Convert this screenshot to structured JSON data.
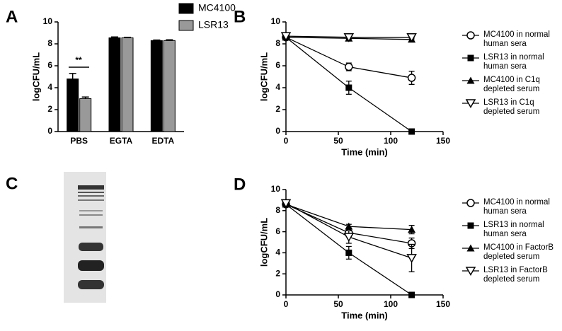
{
  "chart_data": [
    {
      "type": "bar",
      "panel_label": "A",
      "y_label": "logCFU/mL",
      "categories": [
        "PBS",
        "EGTA",
        "EDTA"
      ],
      "series": [
        {
          "name": "MC4100",
          "color": "#000000",
          "values": [
            4.8,
            8.55,
            8.3
          ],
          "errors": [
            0.5,
            0.08,
            0.05
          ]
        },
        {
          "name": "LSR13",
          "color": "#999999",
          "values": [
            3.0,
            8.55,
            8.3
          ],
          "errors": [
            0.15,
            0.05,
            0.07
          ]
        }
      ],
      "ylim": [
        0,
        10
      ],
      "yticks": [
        0,
        2,
        4,
        6,
        8,
        10
      ],
      "annotation": "**",
      "legend": "top"
    },
    {
      "type": "line",
      "panel_label": "B",
      "x_label": "Time (min)",
      "y_label": "logCFU/mL",
      "x": [
        0,
        60,
        120
      ],
      "series": [
        {
          "name": "MC4100 in normal human sera",
          "color": "#000000",
          "marker": "circle-open",
          "values": [
            8.6,
            5.9,
            4.9
          ],
          "errors": [
            0.2,
            0.35,
            0.6
          ]
        },
        {
          "name": "LSR13 in normal human sera",
          "color": "#000000",
          "marker": "square",
          "values": [
            8.6,
            4.0,
            0
          ],
          "errors": [
            0.2,
            0.6,
            0.1
          ]
        },
        {
          "name": "MC4100 in C1q depleted serum",
          "color": "#000000",
          "marker": "triangle",
          "values": [
            8.6,
            8.5,
            8.4
          ],
          "errors": [
            0.2,
            0.15,
            0.15
          ]
        },
        {
          "name": "LSR13 in C1q depleted serum",
          "color": "#000000",
          "marker": "triangle-down-open",
          "values": [
            8.7,
            8.6,
            8.6
          ],
          "errors": [
            0.2,
            0.15,
            0.15
          ]
        }
      ],
      "xlim": [
        0,
        150
      ],
      "xticks": [
        0,
        50,
        100,
        150
      ],
      "ylim": [
        0,
        10
      ],
      "yticks": [
        0,
        2,
        4,
        6,
        8,
        10
      ],
      "legend": "right"
    },
    {
      "type": "line",
      "panel_label": "D",
      "x_label": "Time (min)",
      "y_label": "logCFU/mL",
      "x": [
        0,
        60,
        120
      ],
      "series": [
        {
          "name": "MC4100 in normal human sera",
          "color": "#000000",
          "marker": "circle-open",
          "values": [
            8.6,
            5.9,
            4.9
          ],
          "errors": [
            0.2,
            0.35,
            0.5
          ]
        },
        {
          "name": "LSR13 in normal human sera",
          "color": "#000000",
          "marker": "square",
          "values": [
            8.6,
            4.0,
            0
          ],
          "errors": [
            0.2,
            0.6,
            0.1
          ]
        },
        {
          "name": "MC4100 in FactorB depleted serum",
          "color": "#000000",
          "marker": "triangle",
          "values": [
            8.6,
            6.5,
            6.2
          ],
          "errors": [
            0.2,
            0.2,
            0.4
          ]
        },
        {
          "name": "LSR13 in FactorB depleted serum",
          "color": "#000000",
          "marker": "triangle-down-open",
          "values": [
            8.7,
            5.5,
            3.5
          ],
          "errors": [
            0.2,
            0.6,
            1.3
          ]
        }
      ],
      "xlim": [
        0,
        150
      ],
      "xticks": [
        0,
        50,
        100,
        150
      ],
      "ylim": [
        0,
        10
      ],
      "yticks": [
        0,
        2,
        4,
        6,
        8,
        10
      ],
      "legend": "right"
    }
  ],
  "panel_c": {
    "panel_label": "C"
  }
}
